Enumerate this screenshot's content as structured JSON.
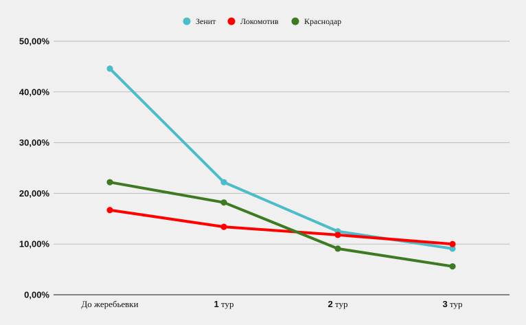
{
  "chart_data": {
    "type": "line",
    "title": "",
    "xlabel": "",
    "ylabel": "",
    "categories": [
      {
        "num": "",
        "text": "До жеребьевки"
      },
      {
        "num": "1",
        "text": " тур"
      },
      {
        "num": "2",
        "text": " тур"
      },
      {
        "num": "3",
        "text": " тур"
      }
    ],
    "ylim": [
      0,
      50
    ],
    "yticks": [
      0,
      10,
      20,
      30,
      40,
      50
    ],
    "ytick_labels": [
      "0,00%",
      "10,00%",
      "20,00%",
      "30,00%",
      "40,00%",
      "50,00%"
    ],
    "grid": true,
    "legend_position": "top-center",
    "series": [
      {
        "name": "Зенит",
        "color": "#4cbcc8",
        "values": [
          44.6,
          22.2,
          12.5,
          9.1
        ]
      },
      {
        "name": "Локомотив",
        "color": "#ff0000",
        "values": [
          16.7,
          13.4,
          11.8,
          10.0
        ]
      },
      {
        "name": "Краснодар",
        "color": "#3e7a22",
        "values": [
          22.2,
          18.2,
          9.1,
          5.6
        ]
      }
    ]
  }
}
